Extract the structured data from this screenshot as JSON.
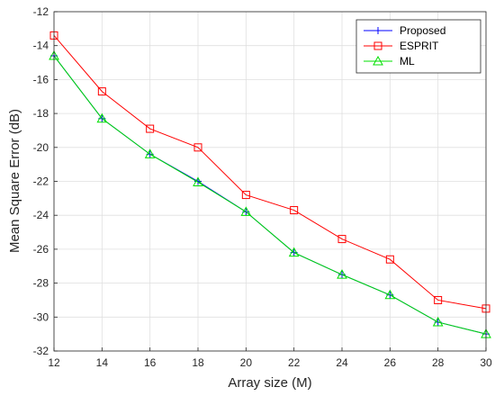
{
  "chart_data": {
    "type": "line",
    "title": "",
    "xlabel": "Array size (M)",
    "ylabel": "Mean Square Error (dB)",
    "xlim": [
      12,
      30
    ],
    "ylim": [
      -32,
      -12
    ],
    "x_ticks": [
      12,
      14,
      16,
      18,
      20,
      22,
      24,
      26,
      28,
      30
    ],
    "y_ticks": [
      -12,
      -14,
      -16,
      -18,
      -20,
      -22,
      -24,
      -26,
      -28,
      -30,
      -32
    ],
    "grid": true,
    "legend_position": "top-right",
    "x": [
      12,
      14,
      16,
      18,
      20,
      22,
      24,
      26,
      28,
      30
    ],
    "series": [
      {
        "name": "Proposed",
        "color": "#0000ff",
        "marker": "plus",
        "values": [
          -14.6,
          -18.3,
          -20.4,
          -22.0,
          -23.8,
          -26.2,
          -27.5,
          -28.7,
          -30.3,
          -31.0
        ]
      },
      {
        "name": "ESPRIT",
        "color": "#ff0000",
        "marker": "square",
        "values": [
          -13.4,
          -16.7,
          -18.9,
          -20.0,
          -22.8,
          -23.7,
          -25.4,
          -26.6,
          -29.0,
          -29.5
        ]
      },
      {
        "name": "ML",
        "color": "#00e000",
        "marker": "triangle",
        "values": [
          -14.6,
          -18.3,
          -20.4,
          -22.05,
          -23.8,
          -26.2,
          -27.5,
          -28.7,
          -30.3,
          -31.0
        ]
      }
    ]
  }
}
